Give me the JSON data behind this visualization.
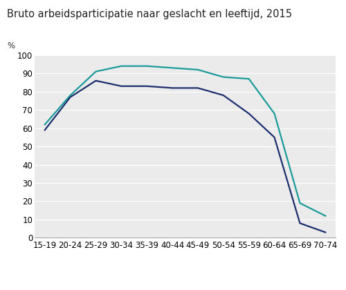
{
  "title": "Bruto arbeidsparticipatie naar geslacht en leeftijd, 2015",
  "pct_label": "%",
  "categories": [
    "15-19",
    "20-24",
    "25-29",
    "30-34",
    "35-39",
    "40-44",
    "45-49",
    "50-54",
    "55-59",
    "60-64",
    "65-69",
    "70-74"
  ],
  "mannen": [
    62,
    78,
    91,
    94,
    94,
    93,
    92,
    88,
    87,
    68,
    19,
    12
  ],
  "vrouwen": [
    59,
    77,
    86,
    83,
    83,
    82,
    82,
    78,
    68,
    55,
    8,
    3
  ],
  "mannen_color": "#1a9a9a",
  "vrouwen_color": "#1a2e6e",
  "ylim": [
    0,
    100
  ],
  "yticks": [
    0,
    10,
    20,
    30,
    40,
    50,
    60,
    70,
    80,
    90,
    100
  ],
  "bg_plot": "#ebebeb",
  "bg_xaxis": "#d8d8d8",
  "bg_fig": "#ffffff",
  "title_fontsize": 10.5,
  "tick_fontsize": 8.5,
  "legend_fontsize": 9.5,
  "line_width": 1.6
}
